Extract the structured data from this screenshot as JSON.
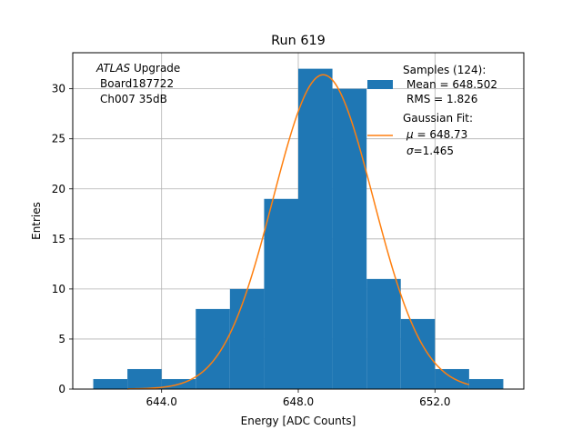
{
  "chart_data": {
    "type": "bar",
    "title": "Run 619",
    "xlabel": "Energy [ADC Counts]",
    "ylabel": "Entries",
    "xlim": [
      641.4,
      654.6
    ],
    "ylim": [
      0,
      33.6
    ],
    "xticks": [
      644.0,
      648.0,
      652.0
    ],
    "xtick_labels": [
      "644.0",
      "648.0",
      "652.0"
    ],
    "yticks": [
      0,
      5,
      10,
      15,
      20,
      25,
      30
    ],
    "ytick_labels": [
      "0",
      "5",
      "10",
      "15",
      "20",
      "25",
      "30"
    ],
    "grid": true,
    "legend_position": "top-right",
    "colors": {
      "bars": "#1f77b4",
      "fit": "#ff7f0e",
      "grid": "#b0b0b0"
    },
    "annotation": {
      "italic": "ATLAS",
      "rest": " Upgrade",
      "line2": "Board187722",
      "line3": "Ch007 35dB"
    },
    "histogram": {
      "name": "Samples (124):",
      "bins": [
        {
          "x0": 642.0,
          "x1": 643.0,
          "count": 1
        },
        {
          "x0": 643.0,
          "x1": 644.0,
          "count": 2
        },
        {
          "x0": 644.0,
          "x1": 645.0,
          "count": 1
        },
        {
          "x0": 645.0,
          "x1": 646.0,
          "count": 8
        },
        {
          "x0": 646.0,
          "x1": 647.0,
          "count": 10
        },
        {
          "x0": 647.0,
          "x1": 648.0,
          "count": 19
        },
        {
          "x0": 648.0,
          "x1": 649.0,
          "count": 32
        },
        {
          "x0": 649.0,
          "x1": 650.0,
          "count": 30
        },
        {
          "x0": 650.0,
          "x1": 651.0,
          "count": 11
        },
        {
          "x0": 651.0,
          "x1": 652.0,
          "count": 7
        },
        {
          "x0": 652.0,
          "x1": 653.0,
          "count": 2
        },
        {
          "x0": 653.0,
          "x1": 654.0,
          "count": 1
        }
      ]
    },
    "legend": {
      "samples_title": "Samples (124):",
      "samples_mean": "Mean = 648.502",
      "samples_rms": "RMS = 1.826",
      "fit_title": "Gaussian Fit:",
      "fit_mu_symbol": "μ",
      "fit_mu_value": " = 648.73",
      "fit_sigma_symbol": "σ",
      "fit_sigma_value": "=1.465"
    },
    "gaussian_fit": {
      "mu": 648.73,
      "sigma": 1.465,
      "amplitude": 31.4,
      "x_range": [
        643.0,
        653.0
      ]
    }
  }
}
